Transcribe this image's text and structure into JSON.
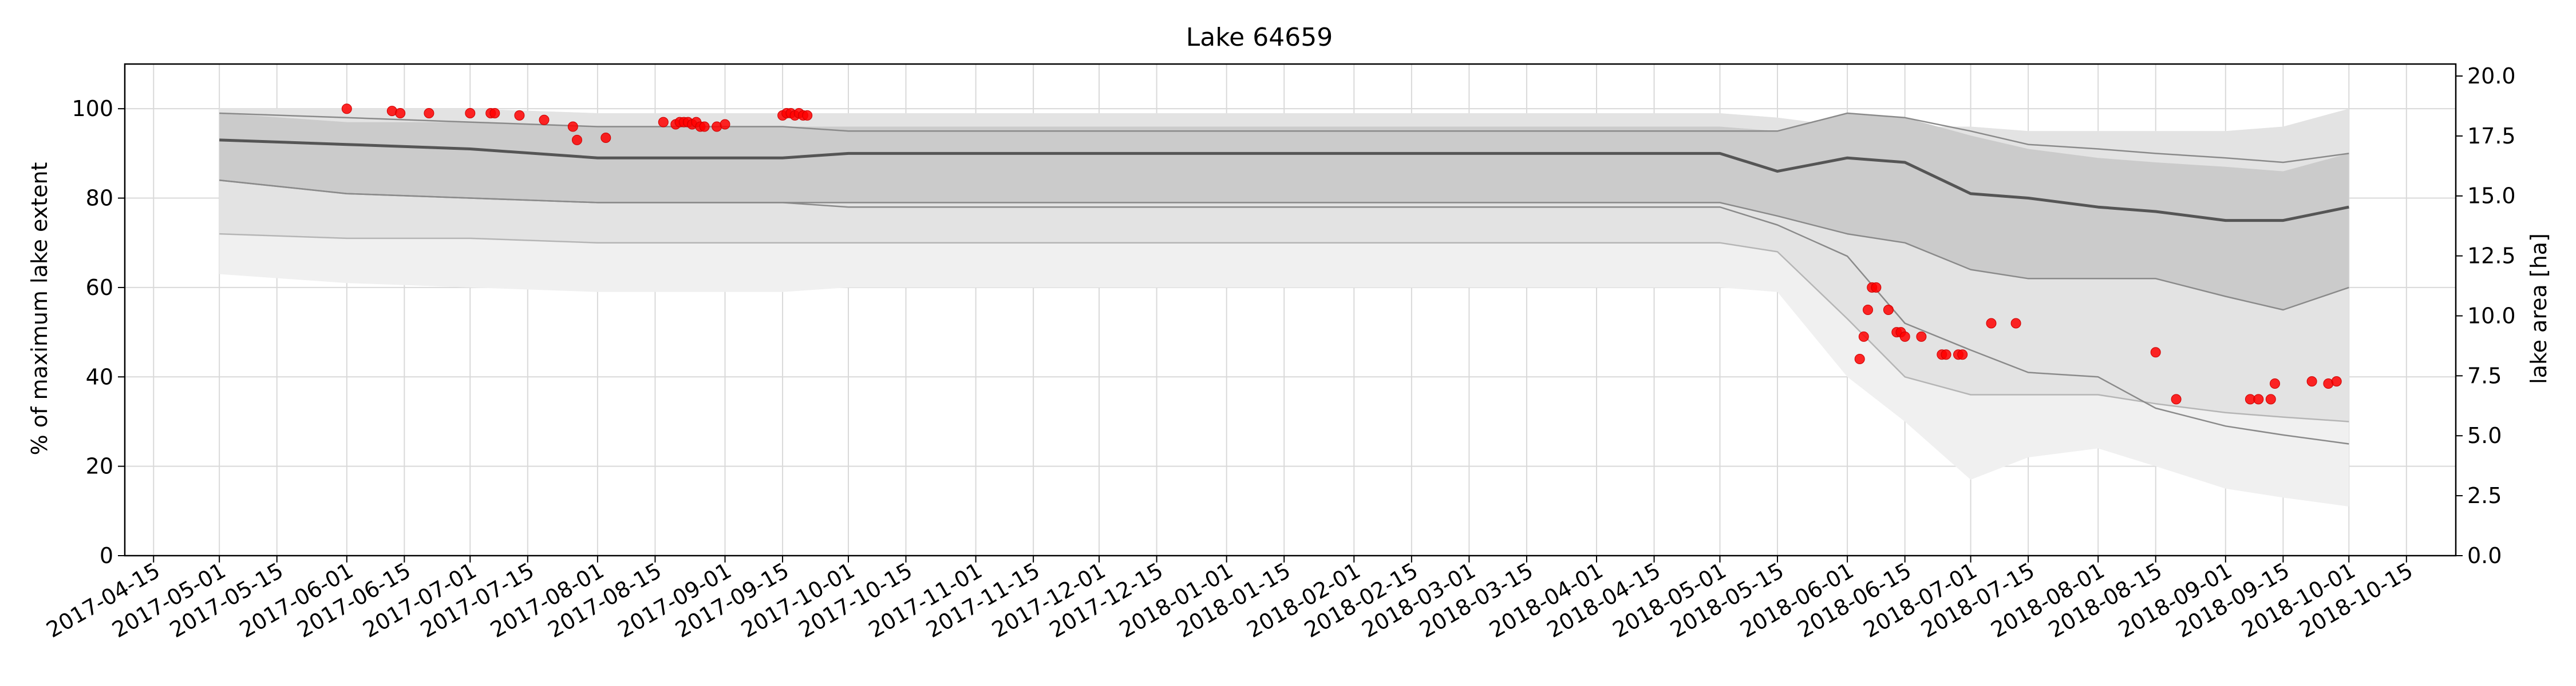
{
  "chart_data": {
    "type": "line",
    "title": "Lake 64659",
    "ylabel": "% of maximum lake extent",
    "ylabel_right": "lake area [ha]",
    "xlim": [
      "2017-04-08",
      "2018-10-27"
    ],
    "ylim": [
      0,
      110
    ],
    "ylim_right": [
      0,
      20.5
    ],
    "grid": true,
    "x_ticks": [
      "2017-04-15",
      "2017-05-01",
      "2017-05-15",
      "2017-06-01",
      "2017-06-15",
      "2017-07-01",
      "2017-07-15",
      "2017-08-01",
      "2017-08-15",
      "2017-09-01",
      "2017-09-15",
      "2017-10-01",
      "2017-10-15",
      "2017-11-01",
      "2017-11-15",
      "2017-12-01",
      "2017-12-15",
      "2018-01-01",
      "2018-01-15",
      "2018-02-01",
      "2018-02-15",
      "2018-03-01",
      "2018-03-15",
      "2018-04-01",
      "2018-04-15",
      "2018-05-01",
      "2018-05-15",
      "2018-06-01",
      "2018-06-15",
      "2018-07-01",
      "2018-07-15",
      "2018-08-01",
      "2018-08-15",
      "2018-09-01",
      "2018-09-15",
      "2018-10-01",
      "2018-10-15"
    ],
    "y_ticks": [
      0,
      20,
      40,
      60,
      80,
      100
    ],
    "y_ticks_right": [
      "0.0",
      "2.5",
      "5.0",
      "7.5",
      "10.0",
      "12.5",
      "15.0",
      "17.5",
      "20.0"
    ],
    "band_dates": [
      "2017-05-01",
      "2017-06-01",
      "2017-07-01",
      "2017-08-01",
      "2017-09-01",
      "2017-09-15",
      "2017-10-01",
      "2018-05-01",
      "2018-05-15",
      "2018-06-01",
      "2018-06-15",
      "2018-07-01",
      "2018-07-15",
      "2018-08-01",
      "2018-08-15",
      "2018-09-01",
      "2018-09-15",
      "2018-10-01"
    ],
    "outer_band": {
      "lower": [
        63,
        61,
        60,
        59,
        59,
        59,
        60,
        60,
        59,
        40,
        30,
        17,
        22,
        24,
        20,
        15,
        13,
        11
      ],
      "upper": [
        100,
        100,
        100,
        99,
        99,
        99,
        99,
        99,
        98,
        96,
        96,
        96,
        95,
        95,
        95,
        95,
        96,
        100
      ]
    },
    "band_90": {
      "lower": [
        72,
        71,
        71,
        70,
        70,
        70,
        70,
        70,
        68,
        53,
        40,
        36,
        36,
        36,
        34,
        32,
        31,
        30
      ]
    },
    "band_75": {
      "lower": [
        84,
        81,
        80,
        79,
        79,
        79,
        78,
        78,
        74,
        67,
        52,
        46,
        41,
        40,
        33,
        29,
        27,
        25
      ],
      "upper": [
        99,
        98,
        97,
        96,
        96,
        96,
        95,
        95,
        95,
        99,
        98,
        95,
        92,
        91,
        90,
        89,
        88,
        90
      ]
    },
    "band_50": {
      "lower": [
        84,
        81,
        80,
        79,
        79,
        79,
        79,
        79,
        76,
        72,
        70,
        64,
        62,
        62,
        62,
        58,
        55,
        60
      ],
      "upper": [
        99,
        97,
        97,
        96,
        96,
        96,
        96,
        96,
        95,
        99,
        98,
        94,
        91,
        89,
        88,
        87,
        86,
        90
      ]
    },
    "median": [
      93,
      92,
      91,
      89,
      89,
      89,
      90,
      90,
      86,
      89,
      88,
      81,
      80,
      78,
      77,
      75,
      75,
      78
    ],
    "series": [
      {
        "marker": "circle",
        "color": "#ff0000",
        "x": [
          "2017-06-01",
          "2017-06-12",
          "2017-06-14",
          "2017-06-21",
          "2017-07-01",
          "2017-07-06",
          "2017-07-07",
          "2017-07-13",
          "2017-07-19",
          "2017-07-26",
          "2017-07-27",
          "2017-08-03",
          "2017-08-17",
          "2017-08-20",
          "2017-08-21",
          "2017-08-22",
          "2017-08-23",
          "2017-08-24",
          "2017-08-25",
          "2017-08-26",
          "2017-08-27",
          "2017-08-30",
          "2017-09-01",
          "2017-09-15",
          "2017-09-16",
          "2017-09-17",
          "2017-09-18",
          "2017-09-19",
          "2017-09-20",
          "2017-09-21",
          "2018-06-04",
          "2018-06-05",
          "2018-06-06",
          "2018-06-07",
          "2018-06-08",
          "2018-06-11",
          "2018-06-13",
          "2018-06-14",
          "2018-06-15",
          "2018-06-19",
          "2018-06-24",
          "2018-06-25",
          "2018-06-28",
          "2018-06-29",
          "2018-07-06",
          "2018-07-12",
          "2018-08-15",
          "2018-08-20",
          "2018-09-07",
          "2018-09-09",
          "2018-09-12",
          "2018-09-13",
          "2018-09-22",
          "2018-09-26",
          "2018-09-28"
        ],
        "y": [
          100,
          99.5,
          99,
          99,
          99,
          99,
          99,
          98.5,
          97.5,
          96,
          93,
          93.5,
          97,
          96.5,
          97,
          97,
          97,
          96.5,
          97,
          96,
          96,
          96,
          96.5,
          98.5,
          99,
          99,
          98.5,
          99,
          98.5,
          98.5,
          44,
          49,
          55,
          60,
          60,
          55,
          50,
          50,
          49,
          49,
          45,
          45,
          45,
          45,
          52,
          52,
          45.5,
          35,
          35,
          35,
          35,
          38.5,
          39,
          38.5,
          39
        ]
      }
    ]
  }
}
